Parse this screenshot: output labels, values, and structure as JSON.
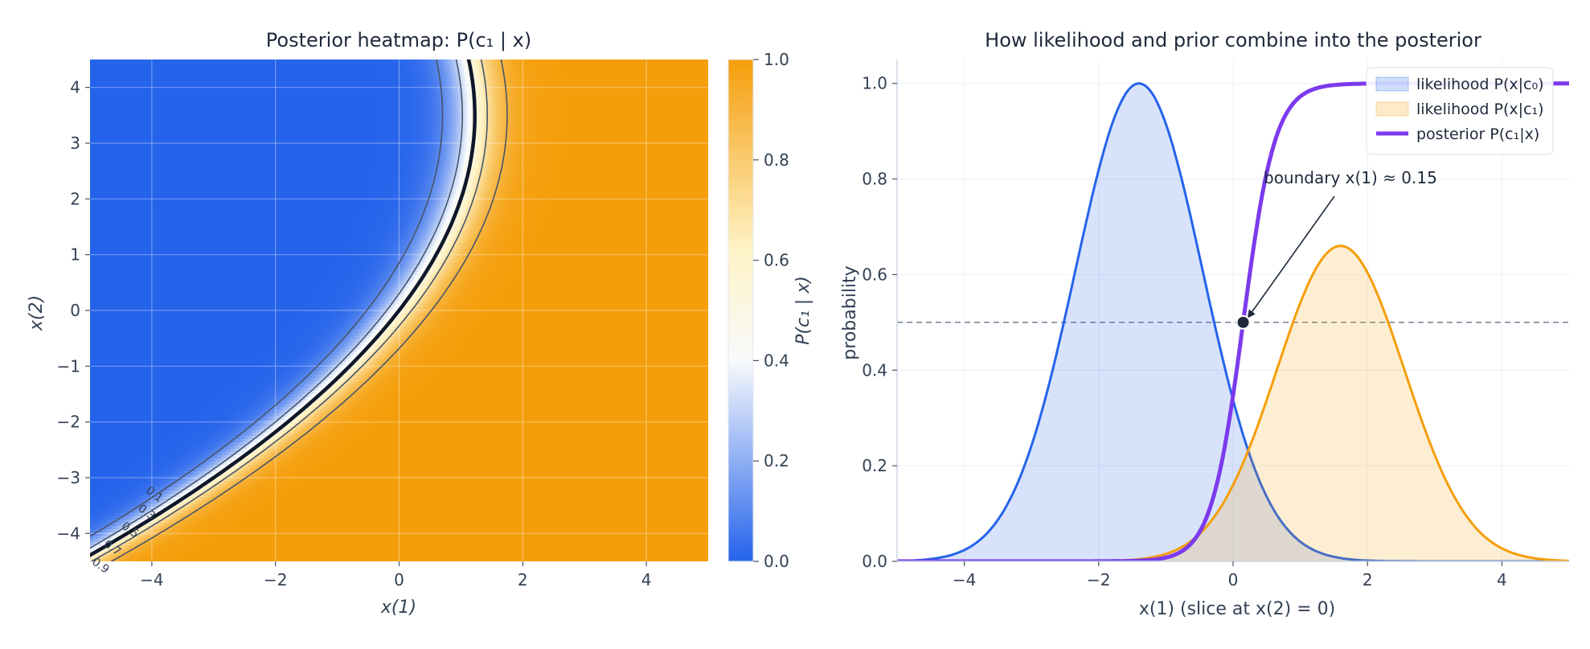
{
  "chart_data": [
    {
      "type": "heatmap",
      "title": "Posterior heatmap: P(c₁ | x)",
      "xlabel": "x(1)",
      "ylabel": "x(2)",
      "xlim": [
        -5,
        5
      ],
      "ylim": [
        -4.5,
        4.5
      ],
      "xticks": [
        -4,
        -2,
        0,
        2,
        4
      ],
      "yticks": [
        -4,
        -3,
        -2,
        -1,
        0,
        1,
        2,
        3,
        4
      ],
      "xtick_labels": [
        "−4",
        "−2",
        "0",
        "2",
        "4"
      ],
      "ytick_labels": [
        "−4",
        "−3",
        "−2",
        "−1",
        "0",
        "1",
        "2",
        "3",
        "4"
      ],
      "grid": true,
      "colorbar": {
        "label": "P(c₁ | x)",
        "range": [
          0,
          1
        ],
        "ticks": [
          0,
          0.2,
          0.4,
          0.6,
          0.8,
          1
        ],
        "tick_labels": [
          "0.0",
          "0.2",
          "0.4",
          "0.6",
          "0.8",
          "1.0"
        ],
        "colors": [
          "#2563eb",
          "#f8fafc",
          "#fef3c7",
          "#f59e0b"
        ]
      },
      "contours": [
        {
          "level": 0.1,
          "label": "0.1"
        },
        {
          "level": 0.3,
          "label": "0.3"
        },
        {
          "level": 0.5,
          "label": "0.5",
          "bold": true
        },
        {
          "level": 0.7,
          "label": "0.7"
        },
        {
          "level": 0.9,
          "label": "0.9"
        }
      ]
    },
    {
      "type": "line",
      "title": "How likelihood and prior combine into the posterior",
      "xlabel": "x(1)  (slice at x(2) = 0)",
      "ylabel": "probability",
      "xlim": [
        -5,
        5
      ],
      "ylim": [
        0,
        1.05
      ],
      "xticks": [
        -4,
        -2,
        0,
        2,
        4
      ],
      "yticks": [
        0,
        0.2,
        0.4,
        0.6,
        0.8,
        1
      ],
      "xtick_labels": [
        "−4",
        "−2",
        "0",
        "2",
        "4"
      ],
      "ytick_labels": [
        "0.0",
        "0.2",
        "0.4",
        "0.6",
        "0.8",
        "1.0"
      ],
      "grid": true,
      "legend_position": "top-right",
      "series": [
        {
          "name": "likelihood P(x|c₀)",
          "kind": "filled-curve",
          "color": "#2563eb",
          "peak_x": -1.4,
          "peak_y": 1.0,
          "sigma": 0.95
        },
        {
          "name": "likelihood P(x|c₁)",
          "kind": "filled-curve",
          "color": "#f59e0b",
          "peak_x": 1.6,
          "peak_y": 0.66,
          "sigma": 0.95
        },
        {
          "name": "posterior P(c₁|x)",
          "kind": "line",
          "color": "#7c3aed",
          "midpoint_x": 0.15,
          "slope": 4.2
        }
      ],
      "reference_line": {
        "y": 0.5,
        "color": "#64748b"
      },
      "boundary_point": {
        "x": 0.15,
        "y": 0.5
      },
      "annotation": {
        "text": "boundary  x(1) ≈ 0.15",
        "x": 0.15,
        "y": 0.5
      }
    }
  ]
}
